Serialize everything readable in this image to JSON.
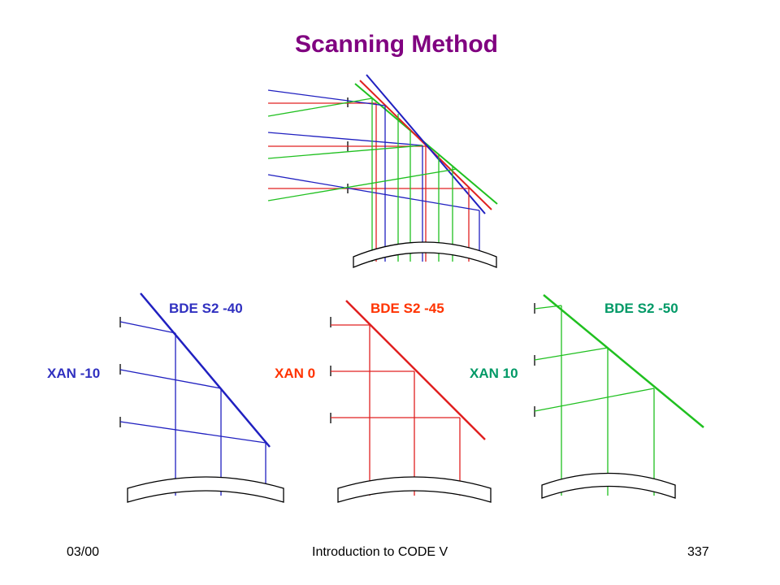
{
  "slide": {
    "title": "Scanning Method",
    "colors": {
      "title": "#800080",
      "blue": "#2020c0",
      "red": "#e02020",
      "green": "#20c020",
      "label_blue": "#3030c0",
      "label_red": "#ff3300",
      "label_green": "#009966"
    }
  },
  "labels": {
    "left_bde": "BDE S2 -40",
    "middle_bde": "BDE S2 -45",
    "right_bde": "BDE S2 -50",
    "left_xan": "XAN -10",
    "middle_xan": "XAN 0",
    "right_xan": "XAN 10"
  },
  "footer": {
    "date": "03/00",
    "course": "Introduction to CODE V",
    "page": "337"
  }
}
